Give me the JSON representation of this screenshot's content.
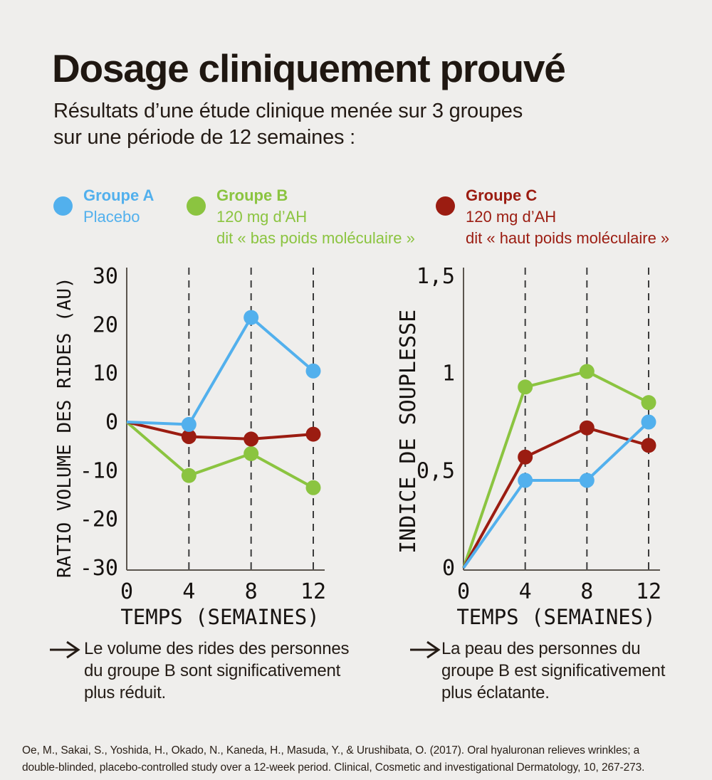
{
  "page": {
    "background": "#efeeec"
  },
  "colors": {
    "blue": "#52b0ed",
    "green": "#8bc440",
    "red": "#9b1c11",
    "axis": "#5b554e",
    "grid": "#3b3b3b",
    "text": "#221913"
  },
  "header": {
    "title": "Dosage cliniquement prouvé",
    "subtitle_lines": [
      "Résultats d’une étude clinique menée sur 3 groupes",
      "sur une période de 12 semaines :"
    ]
  },
  "legend": {
    "items": [
      {
        "name": "Groupe A",
        "lines": [
          "Placebo"
        ],
        "color": "#52b0ed"
      },
      {
        "name": "Groupe B",
        "lines": [
          "120 mg d’AH",
          "dit « bas poids moléculaire »"
        ],
        "color": "#8bc440"
      },
      {
        "name": "Groupe C",
        "lines": [
          "120 mg d’AH",
          "dit « haut poids moléculaire »"
        ],
        "color": "#9b1c11"
      }
    ]
  },
  "chart_data": [
    {
      "type": "line",
      "ylabel": "RATIO VOLUME DES RIDES (AU)",
      "xlabel": "TEMPS (SEMAINES)",
      "x": [
        0,
        4,
        8,
        12
      ],
      "xtick_labels": [
        "0",
        "4",
        "8",
        "12"
      ],
      "ylim": [
        -30,
        30
      ],
      "ytick_values": [
        30,
        20,
        10,
        0,
        -10,
        -20,
        -30
      ],
      "ytick_labels": [
        "30",
        "20",
        "10",
        "0",
        "-10",
        "-20",
        "-30"
      ],
      "grid_x": [
        4,
        8,
        12
      ],
      "grid_style": "vertical-dashed",
      "series": [
        {
          "name": "Groupe A",
          "color": "#52b0ed",
          "values": [
            0,
            -0.5,
            21.5,
            10.5
          ]
        },
        {
          "name": "Groupe B",
          "color": "#8bc440",
          "values": [
            0,
            -11,
            -6.5,
            -13.5
          ]
        },
        {
          "name": "Groupe C",
          "color": "#9b1c11",
          "values": [
            0,
            -3,
            -3.5,
            -2.5
          ]
        }
      ]
    },
    {
      "type": "line",
      "ylabel": "INDICE DE SOUPLESSE",
      "xlabel": "TEMPS (SEMAINES)",
      "x": [
        0,
        4,
        8,
        12
      ],
      "xtick_labels": [
        "0",
        "4",
        "8",
        "12"
      ],
      "ylim": [
        0,
        1.5
      ],
      "ytick_values": [
        1.5,
        1,
        0.5,
        0
      ],
      "ytick_labels": [
        "1,5",
        "1",
        "0,5",
        "0"
      ],
      "grid_x": [
        4,
        8,
        12
      ],
      "grid_style": "vertical-dashed",
      "series": [
        {
          "name": "Groupe A",
          "color": "#52b0ed",
          "values": [
            0,
            0.45,
            0.45,
            0.75
          ]
        },
        {
          "name": "Groupe B",
          "color": "#8bc440",
          "values": [
            0,
            0.93,
            1.01,
            0.85
          ]
        },
        {
          "name": "Groupe C",
          "color": "#9b1c11",
          "values": [
            0,
            0.57,
            0.72,
            0.63
          ]
        }
      ]
    }
  ],
  "annotations": [
    {
      "lines": [
        "Le volume des rides des personnes",
        "du groupe B sont significativement",
        "plus réduit."
      ]
    },
    {
      "lines": [
        "La peau des personnes du",
        "groupe B est significativement",
        "plus éclatante."
      ]
    }
  ],
  "citation_lines": [
    "Oe, M., Sakai, S., Yoshida, H., Okado, N., Kaneda, H., Masuda, Y., & Urushibata, O. (2017). Oral hyaluronan relieves wrinkles; a",
    "double-blinded, placebo-controlled study over a 12-week period. Clinical, Cosmetic and investigational Dermatology, 10, 267-273."
  ]
}
